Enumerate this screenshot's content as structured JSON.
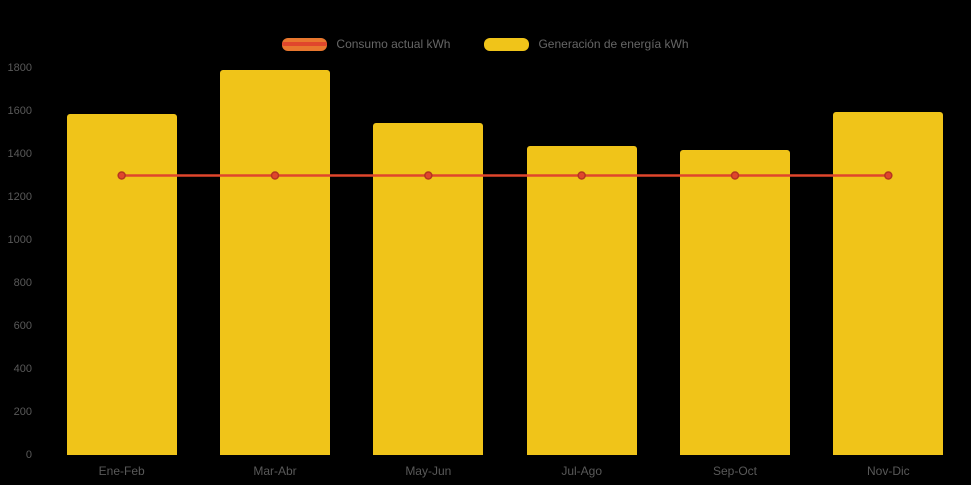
{
  "chart_data": {
    "type": "bar",
    "title": "",
    "xlabel": "",
    "ylabel": "",
    "categories": [
      "Ene-Feb",
      "Mar-Abr",
      "May-Jun",
      "Jul-Ago",
      "Sep-Oct",
      "Nov-Dic"
    ],
    "series": [
      {
        "name": "Consumo actual kWh",
        "type": "line",
        "color": "#E0462C",
        "marker_stroke": "#B53621",
        "legend_box_color": "#E8772E",
        "values": [
          1300,
          1300,
          1300,
          1300,
          1300,
          1300
        ]
      },
      {
        "name": "Generación de energía kWh",
        "type": "bar",
        "color": "#F0C419",
        "values": [
          1585,
          1790,
          1545,
          1435,
          1420,
          1595
        ]
      }
    ],
    "ylim": [
      0,
      1800
    ],
    "yticks": [
      0,
      200,
      400,
      600,
      800,
      1000,
      1200,
      1400,
      1600,
      1800
    ],
    "grid": false,
    "legend_position": "top",
    "background": "#000000",
    "axis_text_color": "#595959"
  }
}
